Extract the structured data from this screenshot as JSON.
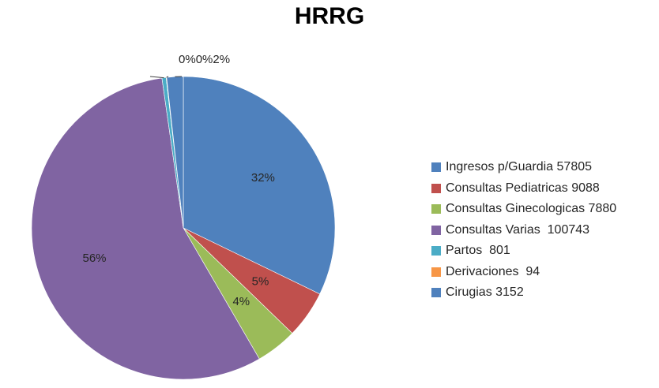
{
  "chart_data": {
    "type": "pie",
    "title": "HRRG",
    "legend_position": "right",
    "slices": [
      {
        "label": "Ingresos p/Guardia 57805",
        "value": 57805,
        "pct_label": "32%",
        "color": "#4F81BD"
      },
      {
        "label": "Consultas Pediatricas 9088",
        "value": 9088,
        "pct_label": "5%",
        "color": "#C0504D"
      },
      {
        "label": "Consultas Ginecologicas 7880",
        "value": 7880,
        "pct_label": "4%",
        "color": "#9BBB59"
      },
      {
        "label": "Consultas Varias  100743",
        "value": 100743,
        "pct_label": "56%",
        "color": "#8064A2"
      },
      {
        "label": "Partos  801",
        "value": 801,
        "pct_label": "0%",
        "color": "#4BACC6"
      },
      {
        "label": "Derivaciones  94",
        "value": 94,
        "pct_label": "0%",
        "color": "#F79646"
      },
      {
        "label": "Cirugias 3152",
        "value": 3152,
        "pct_label": "2%",
        "color": "#4F81BD"
      }
    ]
  }
}
